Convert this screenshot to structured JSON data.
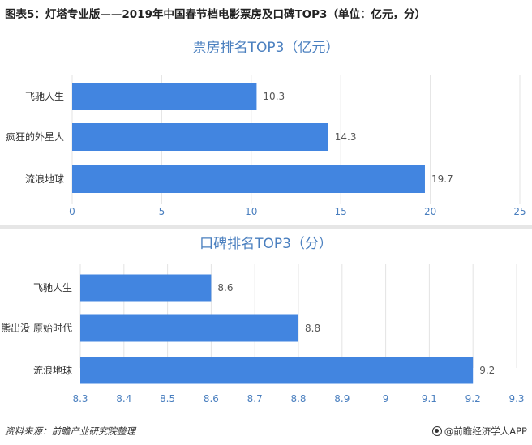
{
  "figure_title": "图表5：灯塔专业版——2019年中国春节档电影票房及口碑TOP3（单位：亿元，分）",
  "chart_data": [
    {
      "type": "bar",
      "orientation": "horizontal",
      "title": "票房排名TOP3（亿元）",
      "categories": [
        "飞驰人生",
        "疯狂的外星人",
        "流浪地球"
      ],
      "values": [
        10.3,
        14.3,
        19.7
      ],
      "value_labels": [
        "10.3",
        "14.3",
        "19.7"
      ],
      "xlim": [
        0,
        25
      ],
      "ticks": [
        0,
        5,
        10,
        15,
        20,
        25
      ],
      "tick_labels": [
        "0",
        "5",
        "10",
        "15",
        "20",
        "25"
      ],
      "bar_color": "#4285e0",
      "grid": true,
      "xlabel": "",
      "ylabel": ""
    },
    {
      "type": "bar",
      "orientation": "horizontal",
      "title": "口碑排名TOP3（分）",
      "categories": [
        "飞驰人生",
        "熊出没 原始时代",
        "流浪地球"
      ],
      "values": [
        8.6,
        8.8,
        9.2
      ],
      "value_labels": [
        "8.6",
        "8.8",
        "9.2"
      ],
      "xlim": [
        8.3,
        9.3
      ],
      "ticks": [
        8.3,
        8.4,
        8.5,
        8.6,
        8.7,
        8.8,
        8.9,
        9.0,
        9.1,
        9.2,
        9.3
      ],
      "tick_labels": [
        "8.3",
        "8.4",
        "8.5",
        "8.6",
        "8.7",
        "8.8",
        "8.9",
        "9",
        "9.1",
        "9.2",
        "9.3"
      ],
      "bar_color": "#4285e0",
      "grid": true,
      "xlabel": "",
      "ylabel": ""
    }
  ],
  "footer": {
    "source": "资料来源：前瞻产业研究院整理",
    "brand": "@前瞻经济学人APP"
  },
  "colors": {
    "bar": "#4285e0",
    "title_blue": "#4a7fbf",
    "grid": "#e3e3e3"
  }
}
